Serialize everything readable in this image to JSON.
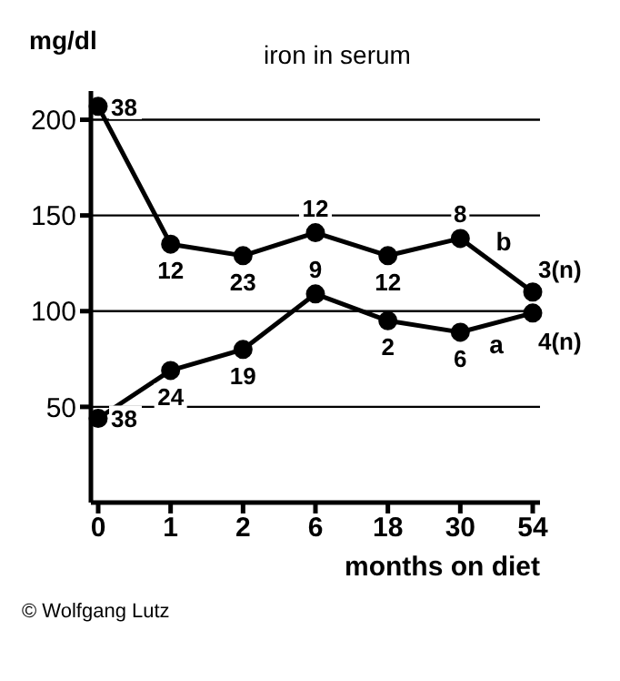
{
  "chart_data": {
    "type": "line",
    "title": "iron in serum",
    "xlabel": "months on diet",
    "ylabel": "mg/dl",
    "categories": [
      "0",
      "1",
      "2",
      "6",
      "18",
      "30",
      "54"
    ],
    "series": [
      {
        "name": "b",
        "color": "#000000",
        "values": [
          207,
          135,
          129,
          141,
          129,
          138,
          110
        ]
      },
      {
        "name": "a",
        "color": "#000000",
        "values": [
          44,
          69,
          80,
          109,
          95,
          89,
          99
        ]
      }
    ],
    "ylim": [
      0,
      215
    ],
    "yticks": [
      50,
      100,
      150,
      200
    ],
    "grid": "y",
    "legend": false,
    "marker": "circle",
    "line_style": "solid",
    "annotations": [
      {
        "text": "38",
        "x": "0",
        "y": 207
      },
      {
        "text": "12",
        "x": "1",
        "y": 135
      },
      {
        "text": "23",
        "x": "2",
        "y": 129
      },
      {
        "text": "12",
        "x": "6",
        "y": 141
      },
      {
        "text": "12",
        "x": "18",
        "y": 129
      },
      {
        "text": "8",
        "x": "30",
        "y": 138
      },
      {
        "text": "3(n)",
        "x": "54",
        "y": 110
      },
      {
        "text": "38",
        "x": "0",
        "y": 44
      },
      {
        "text": "24",
        "x": "1",
        "y": 69
      },
      {
        "text": "19",
        "x": "2",
        "y": 80
      },
      {
        "text": "9",
        "x": "6",
        "y": 109
      },
      {
        "text": "2",
        "x": "18",
        "y": 95
      },
      {
        "text": "6",
        "x": "30",
        "y": 89
      },
      {
        "text": "4(n)",
        "x": "54",
        "y": 99
      },
      "© Wolfgang Lutz"
    ]
  }
}
